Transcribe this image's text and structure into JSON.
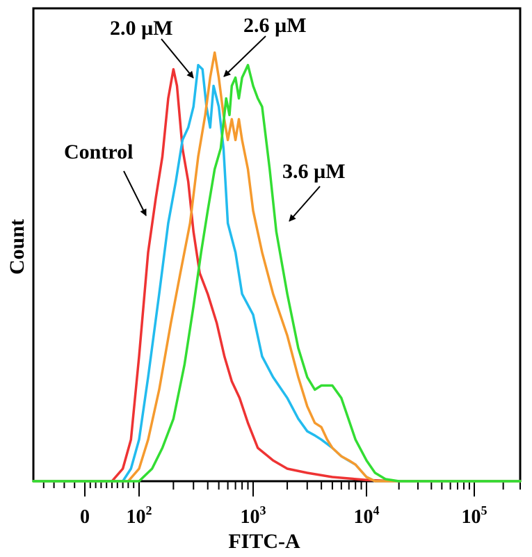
{
  "chart_data": {
    "type": "line",
    "title": "",
    "xlabel": "FITC-A",
    "ylabel": "Count",
    "x_scale": "biexponential",
    "xlim": [
      -50,
      300000
    ],
    "ylim": [
      0,
      100
    ],
    "grid": false,
    "x_tick_labels": [
      {
        "value": 0,
        "base": "0",
        "exp": ""
      },
      {
        "value": 100,
        "base": "10",
        "exp": "2"
      },
      {
        "value": 1000,
        "base": "10",
        "exp": "3"
      },
      {
        "value": 10000,
        "base": "10",
        "exp": "4"
      },
      {
        "value": 100000,
        "base": "10",
        "exp": "5"
      }
    ],
    "series": [
      {
        "name": "Control",
        "color": "#ee3333",
        "x": [
          -50,
          50,
          70,
          85,
          100,
          120,
          140,
          160,
          180,
          200,
          215,
          240,
          270,
          300,
          340,
          400,
          480,
          560,
          650,
          760,
          900,
          1100,
          1500,
          2000,
          3000,
          5000,
          10000,
          20000,
          300000
        ],
        "y": [
          0,
          0,
          3,
          10,
          30,
          55,
          68,
          78,
          92,
          99,
          95,
          80,
          72,
          60,
          50,
          45,
          38,
          30,
          24,
          20,
          14,
          8,
          5,
          3,
          2,
          1,
          0.3,
          0,
          0
        ]
      },
      {
        "name": "2.0 µM",
        "color": "#22bbee",
        "x": [
          -50,
          70,
          85,
          100,
          120,
          150,
          180,
          210,
          240,
          270,
          300,
          330,
          360,
          390,
          420,
          450,
          500,
          550,
          600,
          700,
          800,
          1000,
          1200,
          1500,
          2000,
          2500,
          3000,
          3500,
          4000,
          5000,
          6000,
          8000,
          10000,
          12000,
          20000,
          300000
        ],
        "y": [
          0,
          0,
          3,
          10,
          25,
          45,
          62,
          72,
          82,
          85,
          90,
          100,
          99,
          90,
          85,
          95,
          90,
          80,
          62,
          55,
          45,
          40,
          30,
          25,
          20,
          15,
          12,
          11,
          10,
          8,
          6,
          4,
          1,
          0,
          0,
          0
        ]
      },
      {
        "name": "2.6 µM",
        "color": "#f59a2e",
        "x": [
          -50,
          80,
          100,
          120,
          150,
          190,
          230,
          280,
          330,
          380,
          420,
          460,
          500,
          550,
          600,
          650,
          700,
          750,
          800,
          900,
          1000,
          1200,
          1500,
          2000,
          2500,
          3000,
          3500,
          4000,
          4500,
          5000,
          6000,
          7000,
          8000,
          10000,
          12000,
          20000,
          300000
        ],
        "y": [
          0,
          0,
          3,
          10,
          22,
          38,
          50,
          62,
          78,
          88,
          97,
          103,
          97,
          88,
          82,
          87,
          82,
          87,
          82,
          75,
          65,
          55,
          45,
          35,
          25,
          18,
          14,
          13,
          10,
          8,
          6,
          5,
          4,
          1,
          0,
          0,
          0
        ]
      },
      {
        "name": "3.6 µM",
        "color": "#33dd33",
        "x": [
          -50,
          100,
          130,
          160,
          200,
          250,
          300,
          350,
          400,
          460,
          520,
          580,
          620,
          650,
          700,
          750,
          800,
          900,
          1000,
          1100,
          1200,
          1400,
          1600,
          2000,
          2500,
          3000,
          3500,
          4000,
          5000,
          6000,
          8000,
          10000,
          12000,
          15000,
          20000,
          300000
        ],
        "y": [
          0,
          0,
          3,
          8,
          15,
          28,
          42,
          55,
          65,
          75,
          80,
          92,
          88,
          95,
          97,
          92,
          97,
          100,
          95,
          92,
          90,
          75,
          60,
          45,
          32,
          25,
          22,
          23,
          23,
          20,
          10,
          5,
          2,
          0.5,
          0,
          0
        ]
      }
    ],
    "annotations": [
      {
        "text": "Control",
        "target_series": "Control"
      },
      {
        "text": "2.0 µM",
        "target_series": "2.0 µM"
      },
      {
        "text": "2.6 µM",
        "target_series": "2.6 µM"
      },
      {
        "text": "3.6 µM",
        "target_series": "3.6 µM"
      }
    ]
  }
}
